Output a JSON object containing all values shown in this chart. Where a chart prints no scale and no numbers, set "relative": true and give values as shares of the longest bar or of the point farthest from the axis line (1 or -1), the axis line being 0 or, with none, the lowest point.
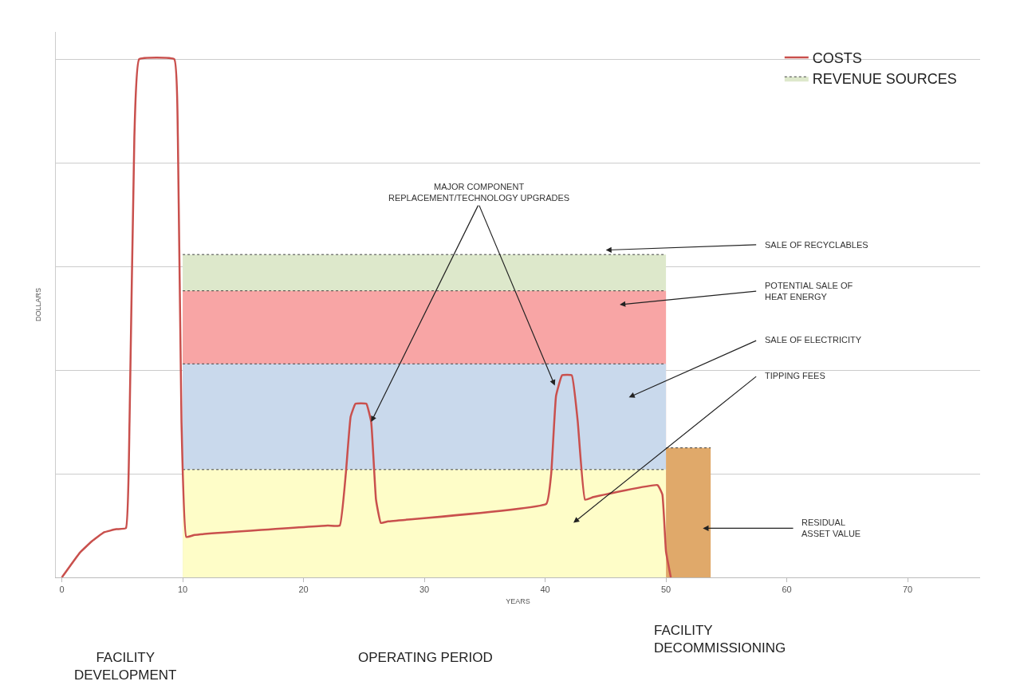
{
  "chart_data": {
    "type": "line",
    "relative": true,
    "xlabel": "YEARS",
    "ylabel": "DOLLARS",
    "xlim": [
      -0.5,
      76
    ],
    "xticks": [
      0,
      10,
      20,
      30,
      40,
      50,
      60,
      70
    ],
    "grid": "y",
    "legend": "top right",
    "series": [
      {
        "name": "COSTS",
        "color": "#c9504d",
        "x": [
          0,
          1.5,
          2.5,
          3.5,
          4.5,
          5.3,
          5.6,
          6.0,
          6.4,
          9.3,
          9.6,
          9.9,
          10.3,
          11,
          22,
          23,
          23.5,
          23.9,
          24.3,
          25.2,
          25.6,
          26.0,
          26.4,
          27,
          40.1,
          40.5,
          40.9,
          41.4,
          42.2,
          42.7,
          43.3,
          44,
          49.3,
          49.7,
          50.0,
          50.4
        ],
        "values": [
          0,
          0.048,
          0.07,
          0.087,
          0.093,
          0.095,
          0.3,
          0.85,
          1,
          1,
          0.85,
          0.3,
          0.078,
          0.082,
          0.1,
          0.1,
          0.2,
          0.31,
          0.335,
          0.335,
          0.3,
          0.15,
          0.105,
          0.108,
          0.142,
          0.2,
          0.35,
          0.39,
          0.39,
          0.3,
          0.15,
          0.155,
          0.178,
          0.16,
          0.05,
          0
        ]
      },
      {
        "name": "REVENUE SOURCES",
        "type": "area",
        "color": "#dde8cb",
        "x": [
          10,
          50
        ],
        "values": [
          0.623,
          0.623
        ]
      },
      {
        "type": "area",
        "color": "#f8a5a5",
        "x": [
          10,
          50
        ],
        "values": [
          0.553,
          0.553
        ]
      },
      {
        "type": "area",
        "color": "#c9d9ec",
        "x": [
          10,
          50
        ],
        "values": [
          0.412,
          0.412
        ]
      },
      {
        "type": "area",
        "color": "#fefdc8",
        "x": [
          10,
          50
        ],
        "values": [
          0.208,
          0.208
        ]
      },
      {
        "type": "area",
        "color": "#e0a96a",
        "x": [
          50,
          53.7
        ],
        "values": [
          0.25,
          0.25
        ]
      }
    ],
    "annotations": [
      {
        "text": "MAJOR COMPONENT\nREPLACEMENT/TECHNOLOGY UPGRADES",
        "x": 25.6,
        "y": 0.3
      },
      "SALE OF RECYCLABLES",
      "POTENTIAL SALE OF\nHEAT ENERGY",
      "SALE OF ELECTRICITY",
      "TIPPING FEES",
      "RESIDUAL\nASSET VALUE",
      "FACILITY\nDEVELOPMENT",
      "OPERATING PERIOD",
      "FACILITY\nDECOMMISSIONING"
    ]
  }
}
